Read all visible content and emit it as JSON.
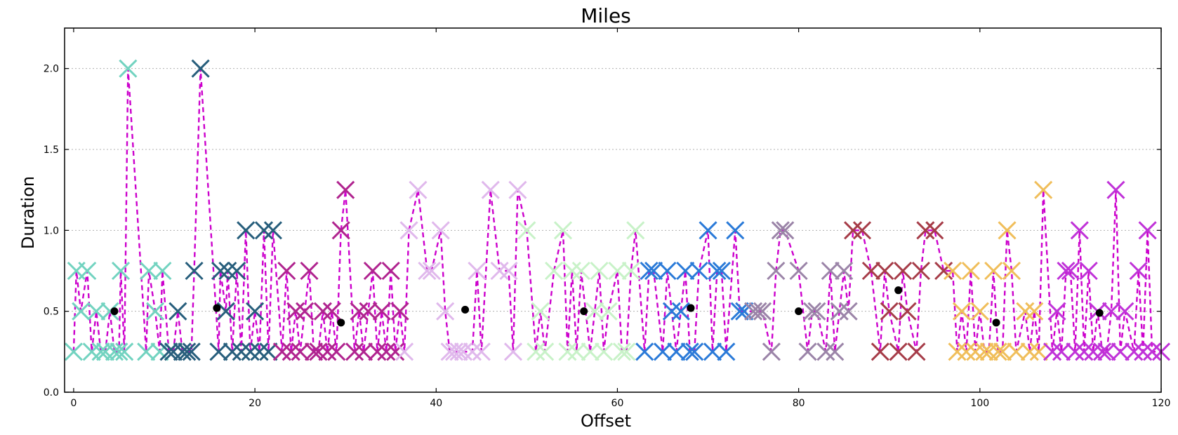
{
  "chart_data": {
    "type": "scatter",
    "title": "Miles",
    "xlabel": "Offset",
    "ylabel": "Duration",
    "xlim": [
      -1,
      120
    ],
    "ylim": [
      0.0,
      2.25
    ],
    "xticks": [
      0,
      20,
      40,
      60,
      80,
      100,
      120
    ],
    "yticks": [
      0.0,
      0.5,
      1.0,
      1.5,
      2.0
    ],
    "xtick_labels": [
      "0",
      "20",
      "40",
      "60",
      "80",
      "100",
      "120"
    ],
    "ytick_labels": [
      "0.0",
      "0.5",
      "1.0",
      "1.5",
      "2.0"
    ],
    "grid": "horizontal dotted",
    "line_color": "#cc00cc",
    "groups": [
      {
        "color": "#72d3c0",
        "points": [
          [
            0,
            0.25
          ],
          [
            0.3,
            0.75
          ],
          [
            0.8,
            0.5
          ],
          [
            1.5,
            0.75
          ],
          [
            2,
            0.25
          ],
          [
            2.5,
            0.5
          ],
          [
            3,
            0.25
          ],
          [
            3.5,
            0.25
          ],
          [
            4,
            0.5
          ],
          [
            4.5,
            0.25
          ],
          [
            5,
            0.25
          ],
          [
            5.2,
            0.75
          ],
          [
            5.6,
            0.25
          ],
          [
            6,
            2.0
          ],
          [
            8,
            0.25
          ],
          [
            8.3,
            0.75
          ],
          [
            9,
            0.5
          ],
          [
            9.5,
            0.25
          ],
          [
            9.8,
            0.75
          ]
        ]
      },
      {
        "color": "#275e7c",
        "points": [
          [
            10.5,
            0.25
          ],
          [
            11,
            0.25
          ],
          [
            11.5,
            0.5
          ],
          [
            12,
            0.25
          ],
          [
            12.5,
            0.25
          ],
          [
            13,
            0.25
          ],
          [
            13.3,
            0.75
          ],
          [
            14,
            2.0
          ],
          [
            16,
            0.25
          ],
          [
            16.2,
            0.75
          ],
          [
            16.8,
            0.5
          ],
          [
            17,
            0.75
          ],
          [
            17.5,
            0.25
          ],
          [
            18,
            0.75
          ],
          [
            18.5,
            0.25
          ],
          [
            19,
            1.0
          ],
          [
            19.5,
            0.25
          ],
          [
            20,
            0.5
          ],
          [
            20.5,
            0.25
          ],
          [
            21,
            1.0
          ],
          [
            21.5,
            0.25
          ],
          [
            22,
            1.0
          ]
        ]
      },
      {
        "color": "#b0248f",
        "points": [
          [
            23,
            0.25
          ],
          [
            23.5,
            0.75
          ],
          [
            24,
            0.25
          ],
          [
            24.5,
            0.5
          ],
          [
            25,
            0.25
          ],
          [
            25.5,
            0.5
          ],
          [
            26,
            0.75
          ],
          [
            26.5,
            0.25
          ],
          [
            27,
            0.25
          ],
          [
            27.5,
            0.5
          ],
          [
            28,
            0.25
          ],
          [
            28.5,
            0.5
          ],
          [
            29,
            0.25
          ],
          [
            29.5,
            1.0
          ],
          [
            30,
            1.25
          ],
          [
            31,
            0.25
          ],
          [
            31.5,
            0.5
          ],
          [
            32,
            0.25
          ],
          [
            32.5,
            0.5
          ],
          [
            33,
            0.75
          ],
          [
            33.5,
            0.25
          ],
          [
            34,
            0.5
          ],
          [
            34.5,
            0.25
          ],
          [
            35,
            0.75
          ],
          [
            35.5,
            0.25
          ],
          [
            36,
            0.5
          ]
        ]
      },
      {
        "color": "#e0b8ec",
        "points": [
          [
            36.5,
            0.25
          ],
          [
            37,
            1.0
          ],
          [
            38,
            1.25
          ],
          [
            39,
            0.75
          ],
          [
            39.5,
            0.75
          ],
          [
            40.5,
            1.0
          ],
          [
            41,
            0.5
          ],
          [
            41.5,
            0.25
          ],
          [
            42,
            0.25
          ],
          [
            42.5,
            0.25
          ],
          [
            43,
            0.25
          ],
          [
            44,
            0.25
          ],
          [
            44.5,
            0.75
          ],
          [
            45,
            0.25
          ],
          [
            46,
            1.25
          ],
          [
            47,
            0.75
          ],
          [
            48,
            0.75
          ],
          [
            48.5,
            0.25
          ],
          [
            49,
            1.25
          ]
        ]
      },
      {
        "color": "#c8f2c8",
        "points": [
          [
            50,
            1.0
          ],
          [
            51,
            0.25
          ],
          [
            51.5,
            0.5
          ],
          [
            52,
            0.25
          ],
          [
            53,
            0.75
          ],
          [
            54,
            1.0
          ],
          [
            54.5,
            0.25
          ],
          [
            55,
            0.75
          ],
          [
            55.5,
            0.25
          ],
          [
            56,
            0.75
          ],
          [
            57,
            0.25
          ],
          [
            57.5,
            0.5
          ],
          [
            58,
            0.75
          ],
          [
            58.5,
            0.25
          ],
          [
            59,
            0.5
          ],
          [
            60,
            0.75
          ],
          [
            60.5,
            0.25
          ],
          [
            61,
            0.25
          ],
          [
            61.5,
            0.75
          ],
          [
            62,
            1.0
          ]
        ]
      },
      {
        "color": "#2a7ad8",
        "points": [
          [
            63,
            0.25
          ],
          [
            63.5,
            0.75
          ],
          [
            64,
            0.75
          ],
          [
            65,
            0.25
          ],
          [
            65.5,
            0.75
          ],
          [
            66,
            0.5
          ],
          [
            66.5,
            0.25
          ],
          [
            67,
            0.5
          ],
          [
            67.5,
            0.75
          ],
          [
            68,
            0.25
          ],
          [
            68.5,
            0.25
          ],
          [
            69,
            0.75
          ],
          [
            70,
            1.0
          ],
          [
            70.5,
            0.25
          ],
          [
            71,
            0.75
          ],
          [
            71.5,
            0.75
          ],
          [
            72,
            0.25
          ],
          [
            73,
            1.0
          ],
          [
            73.5,
            0.5
          ],
          [
            74,
            0.5
          ]
        ]
      },
      {
        "color": "#9b84a8",
        "points": [
          [
            75,
            0.5
          ],
          [
            75.5,
            0.5
          ],
          [
            76,
            0.5
          ],
          [
            77,
            0.25
          ],
          [
            77.5,
            0.75
          ],
          [
            78,
            1.0
          ],
          [
            78.5,
            1.0
          ],
          [
            80,
            0.75
          ],
          [
            81,
            0.25
          ],
          [
            81.5,
            0.5
          ],
          [
            82,
            0.5
          ],
          [
            83,
            0.25
          ],
          [
            83.5,
            0.75
          ],
          [
            84,
            0.25
          ],
          [
            84.5,
            0.5
          ],
          [
            85,
            0.75
          ],
          [
            85.5,
            0.5
          ]
        ]
      },
      {
        "color": "#a63c48",
        "points": [
          [
            86,
            1.0
          ],
          [
            87,
            1.0
          ],
          [
            88,
            0.75
          ],
          [
            89,
            0.25
          ],
          [
            89.5,
            0.75
          ],
          [
            90,
            0.5
          ],
          [
            91,
            0.25
          ],
          [
            91.5,
            0.75
          ],
          [
            92,
            0.5
          ],
          [
            93,
            0.25
          ],
          [
            93.5,
            0.75
          ],
          [
            94,
            1.0
          ],
          [
            95,
            1.0
          ],
          [
            96,
            0.75
          ]
        ]
      },
      {
        "color": "#f0be5a",
        "points": [
          [
            97,
            0.75
          ],
          [
            97.5,
            0.25
          ],
          [
            98,
            0.5
          ],
          [
            98.5,
            0.25
          ],
          [
            99,
            0.75
          ],
          [
            99.5,
            0.25
          ],
          [
            100,
            0.5
          ],
          [
            100.5,
            0.25
          ],
          [
            101,
            0.25
          ],
          [
            101.5,
            0.75
          ],
          [
            102,
            0.25
          ],
          [
            102.5,
            0.25
          ],
          [
            103,
            1.0
          ],
          [
            103.5,
            0.75
          ],
          [
            104,
            0.25
          ],
          [
            105,
            0.5
          ],
          [
            105.5,
            0.25
          ],
          [
            106,
            0.5
          ],
          [
            106.5,
            0.25
          ],
          [
            107,
            1.25
          ]
        ]
      },
      {
        "color": "#c032d8",
        "points": [
          [
            108,
            0.25
          ],
          [
            108.5,
            0.5
          ],
          [
            109,
            0.25
          ],
          [
            109.5,
            0.75
          ],
          [
            110,
            0.75
          ],
          [
            110.5,
            0.25
          ],
          [
            111,
            1.0
          ],
          [
            111.5,
            0.25
          ],
          [
            112,
            0.75
          ],
          [
            112.5,
            0.25
          ],
          [
            113,
            0.5
          ],
          [
            113.5,
            0.25
          ],
          [
            114,
            0.25
          ],
          [
            114.5,
            0.5
          ],
          [
            115,
            1.25
          ],
          [
            115.5,
            0.25
          ],
          [
            116,
            0.5
          ],
          [
            117,
            0.25
          ],
          [
            117.5,
            0.75
          ],
          [
            118,
            0.25
          ],
          [
            118.5,
            1.0
          ],
          [
            119,
            0.25
          ],
          [
            120,
            0.25
          ]
        ]
      }
    ],
    "means": [
      [
        4.5,
        0.5
      ],
      [
        15.8,
        0.52
      ],
      [
        29.5,
        0.43
      ],
      [
        43.2,
        0.51
      ],
      [
        56.3,
        0.5
      ],
      [
        68.1,
        0.52
      ],
      [
        80,
        0.5
      ],
      [
        91,
        0.63
      ],
      [
        101.8,
        0.43
      ],
      [
        113.2,
        0.49
      ]
    ],
    "mean_color": "#000000"
  }
}
